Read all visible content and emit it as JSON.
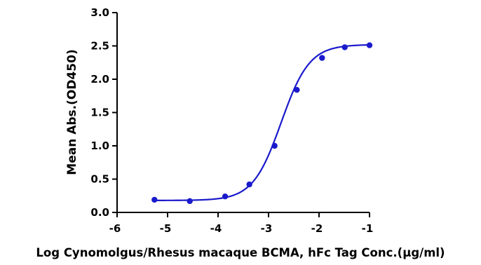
{
  "chart_data": {
    "type": "line",
    "title": "",
    "xlabel": "Log Cynomolgus/Rhesus macaque BCMA, hFc Tag Conc.(μg/ml)",
    "ylabel": "Mean Abs.(OD450)",
    "xlim": [
      -6,
      -1
    ],
    "ylim": [
      0,
      3.0
    ],
    "x_ticks": [
      "-6",
      "-5",
      "-4",
      "-3",
      "-2",
      "-1"
    ],
    "y_ticks": [
      "0.0",
      "0.5",
      "1.0",
      "1.5",
      "2.0",
      "2.5",
      "3.0"
    ],
    "grid": false,
    "legend": "none",
    "series": [
      {
        "color": "#1a1acc",
        "points": [
          {
            "x": -5.26,
            "y": 0.19
          },
          {
            "x": -4.56,
            "y": 0.17
          },
          {
            "x": -3.86,
            "y": 0.24
          },
          {
            "x": -3.38,
            "y": 0.42
          },
          {
            "x": -2.88,
            "y": 1.0
          },
          {
            "x": -2.44,
            "y": 1.84
          },
          {
            "x": -1.94,
            "y": 2.32
          },
          {
            "x": -1.49,
            "y": 2.48
          },
          {
            "x": -1.0,
            "y": 2.51
          }
        ],
        "fit": {
          "model": "4PL",
          "bottom": 0.18,
          "top": 2.52,
          "log_ec50": -2.75,
          "hill": 1.55
        }
      }
    ]
  }
}
